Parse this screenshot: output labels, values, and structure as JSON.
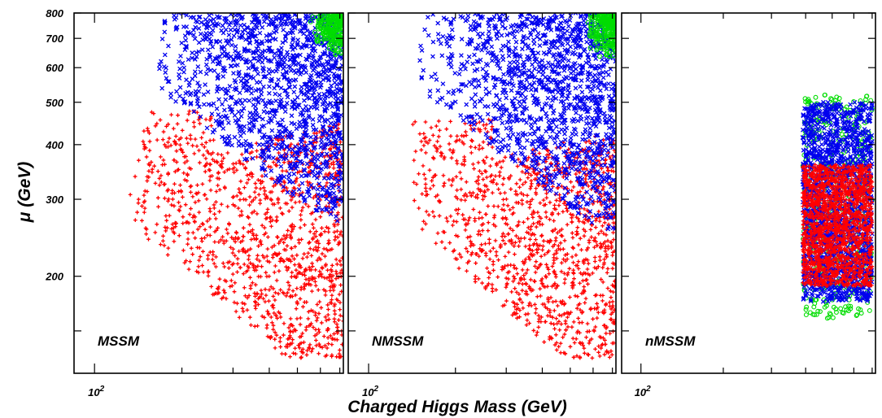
{
  "chart_data": {
    "type": "scatter",
    "xlabel": "Charged Higgs Mass (GeV)",
    "ylabel": "μ (GeV)",
    "xscale": "log",
    "yscale": "log",
    "ylim": [
      120,
      800
    ],
    "ytick_labels": [
      "200",
      "300",
      "400",
      "500",
      "600",
      "700",
      "800"
    ],
    "xtick_label": "10²",
    "colors": {
      "red": "#ff0000",
      "blue": "#0000ee",
      "green": "#00dd00"
    },
    "panels": [
      {
        "label": "MSSM",
        "xlim": [
          85,
          720
        ],
        "regions": [
          {
            "color": "red",
            "marker": "plus",
            "x_range": [
              130,
              720
            ],
            "y_range": [
              130,
              480
            ],
            "density": "dense"
          },
          {
            "color": "blue",
            "marker": "cross",
            "x_range": [
              160,
              720
            ],
            "y_range": [
              260,
              800
            ],
            "density": "dense"
          },
          {
            "color": "green",
            "marker": "circle",
            "x_range": [
              550,
              720
            ],
            "y_range": [
              620,
              800
            ],
            "density": "sparse"
          }
        ]
      },
      {
        "label": "NMSSM",
        "xlim": [
          85,
          720
        ],
        "regions": [
          {
            "color": "red",
            "marker": "plus",
            "x_range": [
              140,
              720
            ],
            "y_range": [
              130,
              460
            ],
            "density": "dense"
          },
          {
            "color": "blue",
            "marker": "cross",
            "x_range": [
              150,
              720
            ],
            "y_range": [
              250,
              800
            ],
            "density": "dense"
          },
          {
            "color": "green",
            "marker": "circle",
            "x_range": [
              560,
              720
            ],
            "y_range": [
              600,
              800
            ],
            "density": "sparse"
          }
        ]
      },
      {
        "label": "nMSSM",
        "xlim": [
          85,
          720
        ],
        "regions": [
          {
            "color": "green",
            "marker": "circle",
            "x_range": [
              390,
              700
            ],
            "y_range": [
              160,
              520
            ],
            "density": "medium"
          },
          {
            "color": "blue",
            "marker": "cross",
            "x_range": [
              390,
              700
            ],
            "y_range": [
              175,
              500
            ],
            "density": "dense"
          },
          {
            "color": "red",
            "marker": "plus",
            "x_range": [
              390,
              700
            ],
            "y_range": [
              190,
              360
            ],
            "density": "dense"
          }
        ]
      }
    ]
  }
}
